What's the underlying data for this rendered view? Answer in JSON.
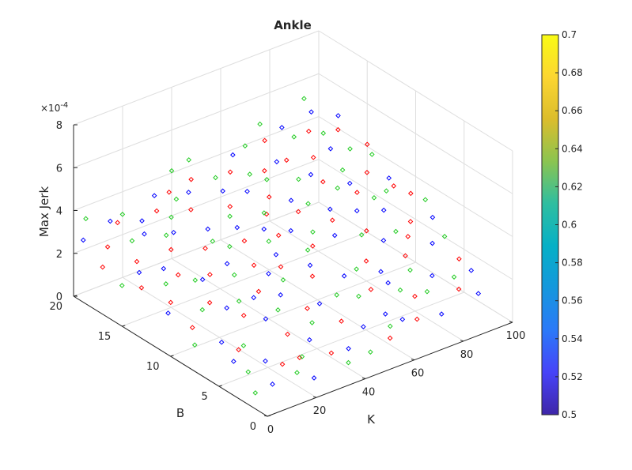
{
  "chart_data": {
    "type": "scatter",
    "subtype": "scatter3d",
    "title": "Ankle",
    "xlabel": "K",
    "ylabel": "B",
    "zlabel": "Max Jerk",
    "z_exponent_label": "×10^-4",
    "xlim": [
      0,
      100
    ],
    "ylim": [
      0,
      20
    ],
    "zlim": [
      0,
      0.0008
    ],
    "xticks": [
      "0",
      "20",
      "40",
      "60",
      "80",
      "100"
    ],
    "yticks": [
      "0",
      "5",
      "10",
      "15",
      "20"
    ],
    "zticks": [
      "0",
      "2",
      "4",
      "6",
      "8"
    ],
    "grid": true,
    "marker": "diamond",
    "marker_colors": [
      "#ff0000",
      "#0000ff",
      "#22cc22"
    ],
    "colorbar": {
      "placement": "right",
      "colormap": "parula",
      "range": [
        0.5,
        0.7
      ],
      "ticks": [
        "0.5",
        "0.52",
        "0.54",
        "0.56",
        "0.58",
        "0.6",
        "0.62",
        "0.64",
        "0.66",
        "0.68",
        "0.7"
      ],
      "colors": [
        "#3e26a8",
        "#4743f8",
        "#2b79f8",
        "#1597dd",
        "#06b0c6",
        "#2fbea0",
        "#8bc450",
        "#dcbd2c",
        "#fcd631",
        "#f9fb15"
      ]
    },
    "series": [
      {
        "color": "#ff0000",
        "points": [
          [
            0,
            17,
            2.2
          ],
          [
            4,
            14,
            1.9
          ],
          [
            6,
            18,
            2.6
          ],
          [
            8,
            12,
            1.6
          ],
          [
            10,
            16,
            2.3
          ],
          [
            12,
            6,
            0.9
          ],
          [
            14,
            19,
            3.1
          ],
          [
            16,
            10,
            1.8
          ],
          [
            18,
            3,
            0.8
          ],
          [
            20,
            15,
            2.7
          ],
          [
            22,
            8,
            1.5
          ],
          [
            24,
            12,
            2.2
          ],
          [
            26,
            18,
            3.4
          ],
          [
            28,
            5,
            1.2
          ],
          [
            30,
            14,
            2.6
          ],
          [
            32,
            9,
            1.9
          ],
          [
            34,
            2,
            0.9
          ],
          [
            36,
            17,
            3.3
          ],
          [
            38,
            11,
            2.3
          ],
          [
            40,
            6,
            1.6
          ],
          [
            42,
            13,
            2.7
          ],
          [
            44,
            19,
            3.8
          ],
          [
            46,
            4,
            1.3
          ],
          [
            48,
            16,
            3.2
          ],
          [
            50,
            8,
            2.1
          ],
          [
            52,
            12,
            2.8
          ],
          [
            54,
            1,
            1.0
          ],
          [
            56,
            18,
            3.9
          ],
          [
            58,
            10,
            2.6
          ],
          [
            60,
            15,
            3.4
          ],
          [
            62,
            5,
            1.8
          ],
          [
            64,
            13,
            3.1
          ],
          [
            66,
            17,
            3.8
          ],
          [
            68,
            7,
            2.3
          ],
          [
            70,
            11,
            3.0
          ],
          [
            72,
            3,
            1.6
          ],
          [
            74,
            19,
            4.3
          ],
          [
            76,
            9,
            2.8
          ],
          [
            78,
            14,
            3.6
          ],
          [
            80,
            6,
            2.3
          ],
          [
            82,
            16,
            4.0
          ],
          [
            84,
            12,
            3.4
          ],
          [
            86,
            2,
            1.6
          ],
          [
            88,
            18,
            4.4
          ],
          [
            90,
            8,
            2.9
          ],
          [
            92,
            13,
            3.7
          ],
          [
            94,
            4,
            2.1
          ],
          [
            96,
            17,
            4.4
          ],
          [
            98,
            10,
            3.3
          ],
          [
            100,
            15,
            4.1
          ],
          [
            25,
            3,
            0.8
          ],
          [
            45,
            10,
            2.2
          ],
          [
            65,
            1,
            1.4
          ],
          [
            85,
            7,
            2.7
          ],
          [
            35,
            19,
            3.6
          ],
          [
            55,
            14,
            3.1
          ],
          [
            75,
            17,
            3.9
          ],
          [
            15,
            13,
            2.3
          ],
          [
            95,
            11,
            3.5
          ],
          [
            5,
            9,
            1.4
          ]
        ]
      },
      {
        "color": "#0000ff",
        "points": [
          [
            0,
            19,
            2.9
          ],
          [
            3,
            11,
            1.6
          ],
          [
            7,
            15,
            2.2
          ],
          [
            9,
            7,
            1.1
          ],
          [
            11,
            19,
            3.3
          ],
          [
            13,
            14,
            2.4
          ],
          [
            15,
            4,
            0.8
          ],
          [
            17,
            17,
            3.0
          ],
          [
            19,
            9,
            1.7
          ],
          [
            21,
            12,
            2.1
          ],
          [
            23,
            1,
            0.5
          ],
          [
            25,
            16,
            3.0
          ],
          [
            27,
            7,
            1.4
          ],
          [
            29,
            19,
            3.7
          ],
          [
            31,
            12,
            2.4
          ],
          [
            33,
            4,
            1.0
          ],
          [
            35,
            15,
            3.0
          ],
          [
            37,
            8,
            1.8
          ],
          [
            39,
            18,
            3.7
          ],
          [
            41,
            2,
            0.8
          ],
          [
            43,
            14,
            3.0
          ],
          [
            45,
            6,
            1.6
          ],
          [
            47,
            11,
            2.4
          ],
          [
            49,
            17,
            3.6
          ],
          [
            51,
            3,
            1.1
          ],
          [
            53,
            9,
            2.2
          ],
          [
            55,
            16,
            3.6
          ],
          [
            57,
            12,
            2.8
          ],
          [
            59,
            7,
            2.0
          ],
          [
            61,
            19,
            4.2
          ],
          [
            63,
            2,
            1.2
          ],
          [
            65,
            14,
            3.3
          ],
          [
            67,
            10,
            2.7
          ],
          [
            69,
            5,
            1.8
          ],
          [
            71,
            17,
            4.0
          ],
          [
            73,
            12,
            3.1
          ],
          [
            75,
            1,
            1.2
          ],
          [
            77,
            15,
            3.7
          ],
          [
            79,
            8,
            2.5
          ],
          [
            81,
            19,
            4.6
          ],
          [
            83,
            4,
            1.8
          ],
          [
            85,
            13,
            3.5
          ],
          [
            87,
            10,
            3.0
          ],
          [
            89,
            16,
            4.1
          ],
          [
            91,
            6,
            2.4
          ],
          [
            93,
            19,
            4.8
          ],
          [
            95,
            3,
            1.8
          ],
          [
            97,
            12,
            3.5
          ],
          [
            99,
            8,
            2.7
          ],
          [
            100,
            18,
            4.6
          ],
          [
            10,
            2,
            0.5
          ],
          [
            30,
            9,
            1.7
          ],
          [
            50,
            13,
            2.9
          ],
          [
            70,
            6,
            2.0
          ],
          [
            90,
            1,
            1.5
          ],
          [
            20,
            18,
            3.2
          ],
          [
            40,
            10,
            2.1
          ],
          [
            60,
            3,
            1.3
          ],
          [
            80,
            11,
            3.0
          ],
          [
            6,
            5,
            0.9
          ]
        ]
      },
      {
        "color": "#22cc22",
        "points": [
          [
            0,
            15,
            1.9
          ],
          [
            2,
            8,
            1.0
          ],
          [
            5,
            20,
            3.4
          ],
          [
            8,
            4,
            0.6
          ],
          [
            10,
            13,
            2.1
          ],
          [
            12,
            17,
            2.9
          ],
          [
            14,
            6,
            1.0
          ],
          [
            16,
            19,
            3.4
          ],
          [
            18,
            12,
            2.2
          ],
          [
            20,
            2,
            0.6
          ],
          [
            22,
            16,
            3.0
          ],
          [
            24,
            9,
            1.8
          ],
          [
            26,
            3,
            0.8
          ],
          [
            28,
            17,
            3.3
          ],
          [
            30,
            11,
            2.2
          ],
          [
            32,
            7,
            1.6
          ],
          [
            34,
            18,
            3.6
          ],
          [
            36,
            13,
            2.7
          ],
          [
            38,
            5,
            1.3
          ],
          [
            40,
            20,
            4.1
          ],
          [
            42,
            9,
            2.0
          ],
          [
            44,
            15,
            3.2
          ],
          [
            46,
            1,
            0.7
          ],
          [
            48,
            12,
            2.7
          ],
          [
            50,
            18,
            3.9
          ],
          [
            52,
            6,
            1.7
          ],
          [
            54,
            14,
            3.2
          ],
          [
            56,
            10,
            2.5
          ],
          [
            58,
            2,
            1.1
          ],
          [
            60,
            17,
            3.9
          ],
          [
            62,
            11,
            2.8
          ],
          [
            64,
            7,
            2.1
          ],
          [
            66,
            19,
            4.4
          ],
          [
            68,
            13,
            3.3
          ],
          [
            70,
            4,
            1.7
          ],
          [
            72,
            15,
            3.7
          ],
          [
            74,
            9,
            2.7
          ],
          [
            76,
            20,
            4.7
          ],
          [
            78,
            5,
            2.0
          ],
          [
            80,
            13,
            3.5
          ],
          [
            82,
            18,
            4.4
          ],
          [
            84,
            8,
            2.7
          ],
          [
            86,
            14,
            3.8
          ],
          [
            88,
            3,
            1.8
          ],
          [
            90,
            17,
            4.5
          ],
          [
            92,
            11,
            3.4
          ],
          [
            94,
            20,
            5.1
          ],
          [
            96,
            6,
            2.5
          ],
          [
            98,
            14,
            4.0
          ],
          [
            100,
            9,
            3.2
          ],
          [
            3,
            2,
            0.4
          ],
          [
            33,
            14,
            2.8
          ],
          [
            63,
            16,
            3.8
          ],
          [
            93,
            15,
            4.2
          ],
          [
            47,
            20,
            4.3
          ],
          [
            77,
            3,
            1.6
          ],
          [
            13,
            10,
            1.6
          ],
          [
            57,
            5,
            1.7
          ],
          [
            87,
            11,
            3.3
          ],
          [
            37,
            1,
            0.6
          ]
        ]
      }
    ]
  }
}
